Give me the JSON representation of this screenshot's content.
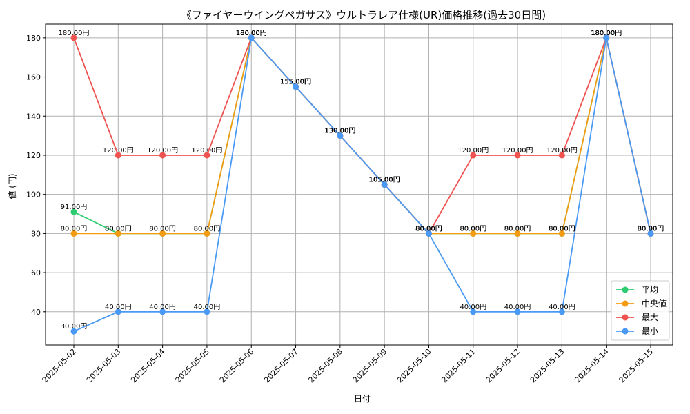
{
  "chart_data": {
    "type": "line",
    "title": "《ファイヤーウイングペガサス》ウルトラレア仕様(UR)価格推移(過去30日間)",
    "xlabel": "日付",
    "ylabel": "値 (円)",
    "categories": [
      "2025-05-02",
      "2025-05-03",
      "2025-05-04",
      "2025-05-05",
      "2025-05-06",
      "2025-05-07",
      "2025-05-08",
      "2025-05-09",
      "2025-05-10",
      "2025-05-11",
      "2025-05-12",
      "2025-05-13",
      "2025-05-14",
      "2025-05-15"
    ],
    "ylim": [
      23,
      187
    ],
    "yticks": [
      40,
      60,
      80,
      100,
      120,
      140,
      160,
      180
    ],
    "grid": true,
    "legend_position": "bottom-right",
    "label_suffix": "円",
    "series": [
      {
        "name": "平均",
        "color": "#2ecc71",
        "values": [
          91,
          80,
          80,
          80,
          180,
          155,
          130,
          105,
          80,
          80,
          80,
          80,
          180,
          80
        ]
      },
      {
        "name": "中央値",
        "color": "#f39c12",
        "values": [
          80,
          80,
          80,
          80,
          180,
          155,
          130,
          105,
          80,
          80,
          80,
          80,
          180,
          80
        ]
      },
      {
        "name": "最大",
        "color": "#ef5350",
        "values": [
          180,
          120,
          120,
          120,
          180,
          155,
          130,
          105,
          80,
          120,
          120,
          120,
          180,
          80
        ]
      },
      {
        "name": "最小",
        "color": "#4a9af5",
        "values": [
          30,
          40,
          40,
          40,
          180,
          155,
          130,
          105,
          80,
          40,
          40,
          40,
          180,
          80
        ]
      }
    ]
  }
}
